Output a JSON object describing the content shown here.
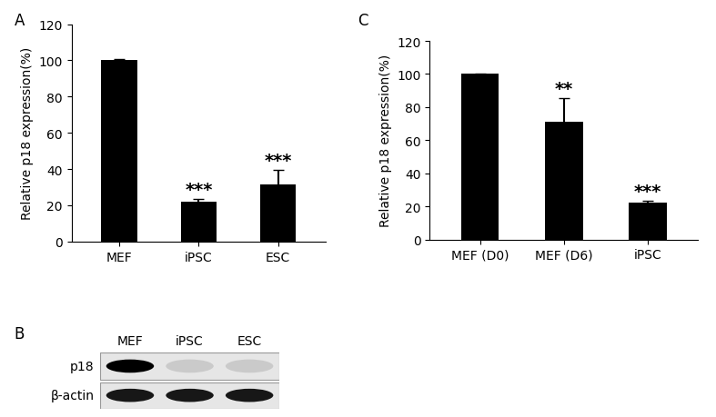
{
  "chart_data": [
    {
      "type": "bar",
      "panel_label": "A",
      "categories": [
        "MEF",
        "iPSC",
        "ESC"
      ],
      "values": [
        100,
        22,
        31.5
      ],
      "errors": [
        0.5,
        1.5,
        8
      ],
      "significance": [
        null,
        "***",
        "***"
      ],
      "y_label": "Relative p18 expression(%)",
      "color": "#000000",
      "ylim": [
        0,
        120
      ],
      "yticks": [
        0,
        20,
        40,
        60,
        80,
        100,
        120
      ]
    },
    {
      "type": "bar",
      "panel_label": "C",
      "categories": [
        "MEF (D0)",
        "MEF (D6)",
        "iPSC"
      ],
      "values": [
        100,
        71,
        22
      ],
      "errors": [
        0.5,
        14.5,
        1.5
      ],
      "significance": [
        null,
        "**",
        "***"
      ],
      "y_label": "Relative p18 expression(%)",
      "color": "#000000",
      "ylim": [
        0,
        120
      ],
      "yticks": [
        0,
        20,
        40,
        60,
        80,
        100,
        120
      ]
    }
  ],
  "blot": {
    "panel_label": "B",
    "lanes": [
      "MEF",
      "iPSC",
      "ESC"
    ],
    "rows": [
      "p18",
      "β-actin"
    ],
    "band_intensity": [
      [
        1.0,
        0.12,
        0.12
      ],
      [
        0.9,
        0.9,
        0.9
      ]
    ]
  }
}
